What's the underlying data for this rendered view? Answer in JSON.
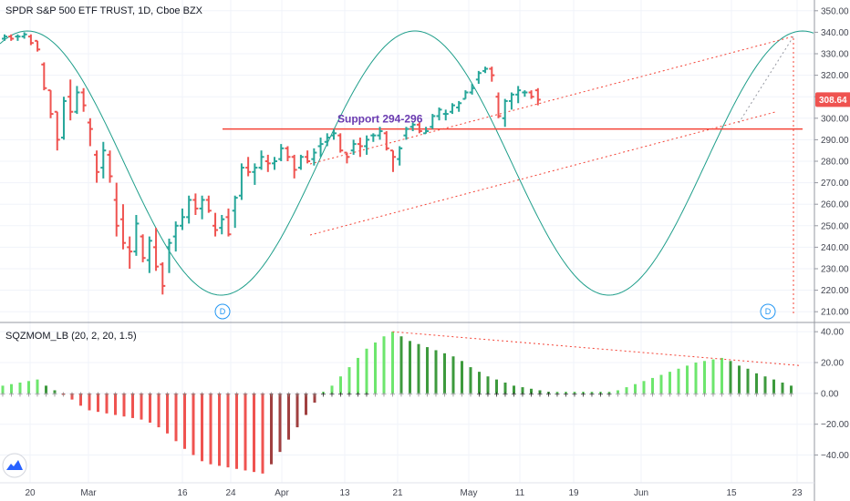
{
  "chart_data": [
    {
      "type": "ohlc",
      "title": "SPDR S&P 500 ETF TRUST, 1D, Cboe BZX",
      "ylim": [
        205,
        355
      ],
      "y_ticks": [
        210,
        220,
        230,
        240,
        250,
        260,
        270,
        280,
        290,
        300,
        310,
        320,
        330,
        340,
        350
      ],
      "y_tick_labels": [
        "210.00",
        "220.00",
        "230.00",
        "240.00",
        "250.00",
        "260.00",
        "270.00",
        "280.00",
        "290.00",
        "300.00",
        "310.00",
        "320.00",
        "330.00",
        "340.00",
        "350.00"
      ],
      "x_ticks": [
        "20",
        "Mar",
        "16",
        "24",
        "Apr",
        "13",
        "21",
        "May",
        "11",
        "19",
        "Jun",
        "15",
        "23"
      ],
      "last_price": "308.64",
      "annotation": "Support 294-296",
      "support_level": 295,
      "markers": [
        "D",
        "D"
      ],
      "grid": true,
      "colors": {
        "up": "#26a69a",
        "down": "#ef5350",
        "support": "#f44336",
        "sine": "#1e9e8a",
        "channel": "#f44336",
        "price_tag": "#ef5350"
      },
      "bars": [
        {
          "o": 337,
          "h": 339,
          "l": 336,
          "c": 338
        },
        {
          "o": 338,
          "h": 339,
          "l": 336,
          "c": 337
        },
        {
          "o": 338,
          "h": 339,
          "l": 336,
          "c": 338
        },
        {
          "o": 338,
          "h": 340,
          "l": 337,
          "c": 339
        },
        {
          "o": 338,
          "h": 339,
          "l": 334,
          "c": 335
        },
        {
          "o": 336,
          "h": 336,
          "l": 331,
          "c": 332
        },
        {
          "o": 325,
          "h": 326,
          "l": 313,
          "c": 314
        },
        {
          "o": 313,
          "h": 313,
          "l": 300,
          "c": 302
        },
        {
          "o": 303,
          "h": 303,
          "l": 285,
          "c": 290
        },
        {
          "o": 291,
          "h": 310,
          "l": 290,
          "c": 308
        },
        {
          "o": 310,
          "h": 318,
          "l": 299,
          "c": 303
        },
        {
          "o": 303,
          "h": 315,
          "l": 302,
          "c": 312
        },
        {
          "o": 312,
          "h": 314,
          "l": 303,
          "c": 306
        },
        {
          "o": 298,
          "h": 300,
          "l": 287,
          "c": 295
        },
        {
          "o": 283,
          "h": 285,
          "l": 270,
          "c": 275
        },
        {
          "o": 277,
          "h": 289,
          "l": 272,
          "c": 285
        },
        {
          "o": 283,
          "h": 285,
          "l": 270,
          "c": 273
        },
        {
          "o": 262,
          "h": 270,
          "l": 245,
          "c": 250
        },
        {
          "o": 253,
          "h": 260,
          "l": 239,
          "c": 242
        },
        {
          "o": 240,
          "h": 245,
          "l": 230,
          "c": 238
        },
        {
          "o": 238,
          "h": 255,
          "l": 236,
          "c": 251
        },
        {
          "o": 245,
          "h": 246,
          "l": 233,
          "c": 235
        },
        {
          "o": 234,
          "h": 245,
          "l": 228,
          "c": 243
        },
        {
          "o": 240,
          "h": 249,
          "l": 229,
          "c": 231
        },
        {
          "o": 232,
          "h": 233,
          "l": 218,
          "c": 222
        },
        {
          "o": 240,
          "h": 244,
          "l": 228,
          "c": 242
        },
        {
          "o": 245,
          "h": 252,
          "l": 238,
          "c": 250
        },
        {
          "o": 250,
          "h": 258,
          "l": 248,
          "c": 254
        },
        {
          "o": 254,
          "h": 264,
          "l": 251,
          "c": 262
        },
        {
          "o": 262,
          "h": 265,
          "l": 255,
          "c": 258
        },
        {
          "o": 258,
          "h": 264,
          "l": 253,
          "c": 262
        },
        {
          "o": 262,
          "h": 264,
          "l": 256,
          "c": 257
        },
        {
          "o": 250,
          "h": 256,
          "l": 245,
          "c": 248
        },
        {
          "o": 249,
          "h": 255,
          "l": 246,
          "c": 253
        },
        {
          "o": 254,
          "h": 258,
          "l": 245,
          "c": 246
        },
        {
          "o": 257,
          "h": 264,
          "l": 249,
          "c": 263
        },
        {
          "o": 264,
          "h": 279,
          "l": 262,
          "c": 277
        },
        {
          "o": 277,
          "h": 282,
          "l": 273,
          "c": 275
        },
        {
          "o": 275,
          "h": 279,
          "l": 269,
          "c": 277
        },
        {
          "o": 277,
          "h": 285,
          "l": 276,
          "c": 282
        },
        {
          "o": 280,
          "h": 283,
          "l": 275,
          "c": 279
        },
        {
          "o": 279,
          "h": 282,
          "l": 276,
          "c": 280
        },
        {
          "o": 281,
          "h": 288,
          "l": 280,
          "c": 286
        },
        {
          "o": 286,
          "h": 287,
          "l": 280,
          "c": 282
        },
        {
          "o": 282,
          "h": 283,
          "l": 272,
          "c": 276
        },
        {
          "o": 277,
          "h": 283,
          "l": 276,
          "c": 282
        },
        {
          "o": 282,
          "h": 285,
          "l": 279,
          "c": 280
        },
        {
          "o": 281,
          "h": 286,
          "l": 278,
          "c": 284
        },
        {
          "o": 287,
          "h": 291,
          "l": 282,
          "c": 288
        },
        {
          "o": 289,
          "h": 293,
          "l": 287,
          "c": 291
        },
        {
          "o": 292,
          "h": 295,
          "l": 290,
          "c": 293
        },
        {
          "o": 292,
          "h": 293,
          "l": 284,
          "c": 285
        },
        {
          "o": 284,
          "h": 284,
          "l": 279,
          "c": 282
        },
        {
          "o": 285,
          "h": 290,
          "l": 283,
          "c": 288
        },
        {
          "o": 288,
          "h": 291,
          "l": 282,
          "c": 287
        },
        {
          "o": 287,
          "h": 292,
          "l": 283,
          "c": 290
        },
        {
          "o": 292,
          "h": 293,
          "l": 289,
          "c": 292
        },
        {
          "o": 292,
          "h": 296,
          "l": 290,
          "c": 294
        },
        {
          "o": 293,
          "h": 294,
          "l": 285,
          "c": 286
        },
        {
          "o": 285,
          "h": 285,
          "l": 275,
          "c": 282
        },
        {
          "o": 281,
          "h": 287,
          "l": 278,
          "c": 286
        },
        {
          "o": 292,
          "h": 296,
          "l": 290,
          "c": 295
        },
        {
          "o": 296,
          "h": 298,
          "l": 294,
          "c": 297
        },
        {
          "o": 297,
          "h": 298,
          "l": 293,
          "c": 294
        },
        {
          "o": 293,
          "h": 296,
          "l": 293,
          "c": 294
        },
        {
          "o": 296,
          "h": 302,
          "l": 295,
          "c": 301
        },
        {
          "o": 301,
          "h": 305,
          "l": 299,
          "c": 304
        },
        {
          "o": 302,
          "h": 304,
          "l": 299,
          "c": 302
        },
        {
          "o": 303,
          "h": 307,
          "l": 302,
          "c": 306
        },
        {
          "o": 305,
          "h": 308,
          "l": 303,
          "c": 307
        },
        {
          "o": 309,
          "h": 313,
          "l": 309,
          "c": 312
        },
        {
          "o": 312,
          "h": 316,
          "l": 311,
          "c": 314
        },
        {
          "o": 318,
          "h": 322,
          "l": 316,
          "c": 321
        },
        {
          "o": 322,
          "h": 324,
          "l": 321,
          "c": 323
        },
        {
          "o": 323,
          "h": 324,
          "l": 317,
          "c": 320
        },
        {
          "o": 310,
          "h": 312,
          "l": 300,
          "c": 301
        },
        {
          "o": 300,
          "h": 309,
          "l": 296,
          "c": 308
        },
        {
          "o": 308,
          "h": 312,
          "l": 304,
          "c": 311
        },
        {
          "o": 311,
          "h": 315,
          "l": 307,
          "c": 313
        },
        {
          "o": 312,
          "h": 313,
          "l": 310,
          "c": 312
        },
        {
          "o": 312,
          "h": 313,
          "l": 309,
          "c": 310
        },
        {
          "o": 313,
          "h": 314,
          "l": 306,
          "c": 308.64
        }
      ]
    },
    {
      "type": "bar",
      "title": "SQZMOM_LB (20, 2, 20, 1.5)",
      "ylim": [
        -58,
        46
      ],
      "y_ticks": [
        40,
        20,
        0,
        -20,
        -40
      ],
      "y_tick_labels": [
        "40.00",
        "20.00",
        "0.00",
        "−20.00",
        "−40.00"
      ],
      "grid": true,
      "colors": {
        "up_rising": "#6de66d",
        "up_falling": "#3d9a3d",
        "down_falling": "#ef5350",
        "down_rising": "#a04040",
        "squeeze_on": "#000000",
        "squeeze_off": "#808080",
        "trend": "#f44336"
      },
      "values": [
        5,
        6,
        7,
        8,
        9,
        5,
        2,
        -1,
        -4,
        -8,
        -11,
        -12,
        -13,
        -14,
        -15,
        -16,
        -17,
        -19,
        -22,
        -26,
        -31,
        -36,
        -40,
        -44,
        -46,
        -47,
        -48,
        -49,
        -50,
        -51,
        -52,
        -46,
        -38,
        -30,
        -22,
        -14,
        -6,
        1,
        5,
        11,
        17,
        23,
        29,
        33,
        37,
        40,
        37,
        34,
        32,
        30,
        28,
        26,
        24,
        21,
        17,
        14,
        11,
        9,
        7,
        5,
        4,
        3,
        2,
        1,
        1,
        1,
        1,
        1,
        1,
        1,
        1,
        2,
        4,
        6,
        8,
        10,
        12,
        14,
        16,
        18,
        20,
        21,
        22,
        23,
        21,
        18,
        16,
        13,
        11,
        9,
        7,
        5
      ]
    }
  ]
}
